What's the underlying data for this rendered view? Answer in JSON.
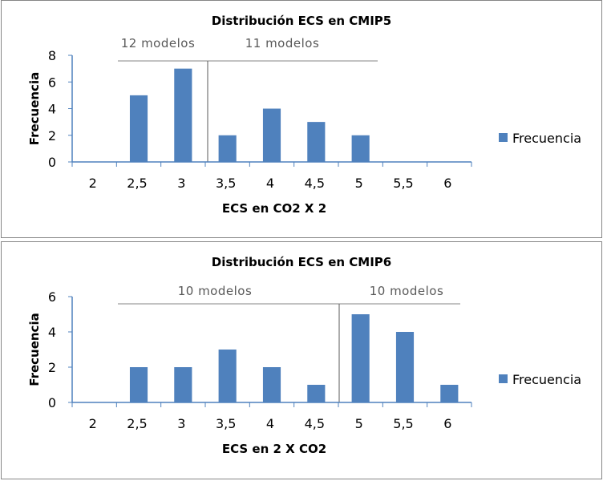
{
  "chart_data": [
    {
      "type": "bar",
      "title": "Distribución  ECS en CMIP5",
      "xlabel": "ECS en CO2 X 2",
      "ylabel": "Frecuencia",
      "categories": [
        "2",
        "2,5",
        "3",
        "3,5",
        "4",
        "4,5",
        "5",
        "5,5",
        "6"
      ],
      "series": [
        {
          "name": "Frecuencia",
          "values": [
            0,
            5,
            7,
            2,
            4,
            3,
            2,
            0,
            0
          ]
        }
      ],
      "ylim": [
        0,
        8
      ],
      "yticks": [
        0,
        2,
        4,
        6,
        8
      ],
      "legend": "right",
      "bar_color": "#4F81BD",
      "annotations": [
        {
          "text": "12 modelos"
        },
        {
          "text": "11 modelos"
        }
      ],
      "divider_after_value": 3.25
    },
    {
      "type": "bar",
      "title": "Distribución  ECS en CMIP6",
      "xlabel": "ECS en 2 X CO2",
      "ylabel": "Frecuencia",
      "categories": [
        "2",
        "2,5",
        "3",
        "3,5",
        "4",
        "4,5",
        "5",
        "5,5",
        "6"
      ],
      "series": [
        {
          "name": "Frecuencia",
          "values": [
            0,
            2,
            2,
            3,
            2,
            1,
            5,
            4,
            1
          ]
        }
      ],
      "ylim": [
        0,
        6
      ],
      "yticks": [
        0,
        2,
        4,
        6
      ],
      "legend": "right",
      "bar_color": "#4F81BD",
      "annotations": [
        {
          "text": "10 modelos"
        },
        {
          "text": "10 modelos"
        }
      ],
      "divider_after_value": 4.75
    }
  ]
}
